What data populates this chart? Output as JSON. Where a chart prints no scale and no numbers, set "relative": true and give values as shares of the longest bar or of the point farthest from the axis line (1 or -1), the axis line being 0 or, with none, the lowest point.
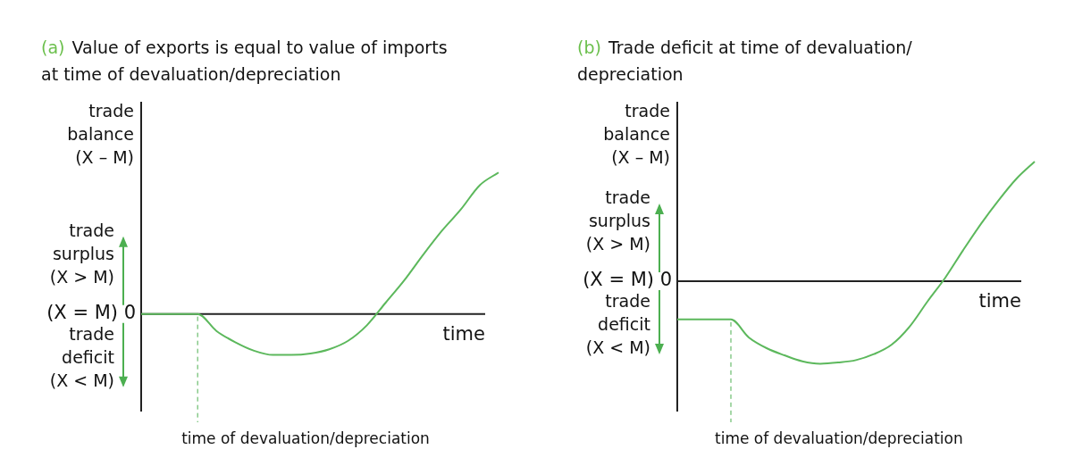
{
  "chart_data": [
    {
      "type": "line",
      "title": "(a) Value of exports is equal to value of imports at time of devaluation/depreciation",
      "ylabel": "trade balance (X – M)",
      "xlabel": "time",
      "relative": true,
      "categories": [
        null,
        null,
        null,
        null,
        null,
        null,
        null,
        null,
        null,
        null,
        null,
        null,
        null,
        null,
        null,
        null,
        null,
        null,
        null,
        null
      ],
      "series": [
        {
          "color": "#5cb85c",
          "values": [
            0,
            0,
            0,
            0,
            -0.12,
            -0.2,
            -0.26,
            -0.29,
            -0.29,
            -0.28,
            -0.25,
            -0.19,
            -0.08,
            0.08,
            0.24,
            0.42,
            0.59,
            0.74,
            0.91,
            1
          ]
        }
      ],
      "annotations": [
        "trade surplus (X > M)",
        "(X = M) 0",
        "trade deficit (X < M)",
        "time of devaluation/depreciation"
      ]
    },
    {
      "type": "line",
      "title": "(b) Trade deficit at time of devaluation/ depreciation",
      "ylabel": "trade balance (X – M)",
      "xlabel": "time",
      "relative": true,
      "categories": [
        null,
        null,
        null,
        null,
        null,
        null,
        null,
        null,
        null,
        null,
        null,
        null,
        null,
        null,
        null,
        null,
        null,
        null,
        null,
        null,
        null
      ],
      "series": [
        {
          "color": "#5cb85c",
          "values": [
            -0.32,
            -0.32,
            -0.32,
            -0.32,
            -0.47,
            -0.56,
            -0.62,
            -0.67,
            -0.69,
            -0.68,
            -0.66,
            -0.61,
            -0.53,
            -0.38,
            -0.17,
            0.03,
            0.26,
            0.48,
            0.68,
            0.86,
            1
          ]
        }
      ],
      "annotations": [
        "trade surplus (X > M)",
        "(X = M) 0",
        "trade deficit (X < M)",
        "time of devaluation/depreciation"
      ]
    }
  ]
}
